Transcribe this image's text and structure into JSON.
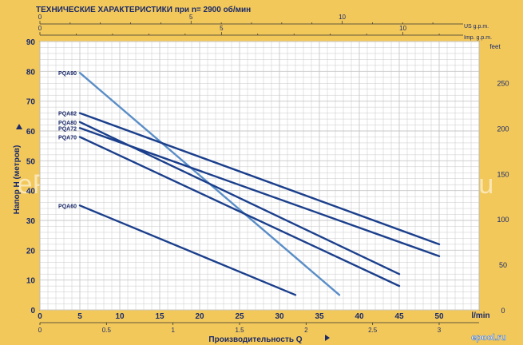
{
  "header": {
    "title": "ТЕХНИЧЕСКИЕ ХАРАКТЕРИСТИКИ при n= 2900 об/мин"
  },
  "watermark": {
    "text": "ePool.ru",
    "logo_text": "epool.ru"
  },
  "colors": {
    "background": "#f2c85a",
    "plot_bg": "#ffffff",
    "grid": "#c8c8c8",
    "curve_main": "#1b3f8c",
    "curve_pqa90": "#5a8ec7",
    "text": "#1a2a6a"
  },
  "chart_data": {
    "type": "line",
    "title": "ТЕХНИЧЕСКИЕ ХАРАКТЕРИСТИКИ при n= 2900 об/мин",
    "xlabel": "Производительность Q",
    "ylabel": "Напор Н (метров)",
    "x_unit": "l/min",
    "y_right_unit": "feet",
    "top_scale1_unit": "US g.p.m.",
    "top_scale2_unit": "Imp. g.p.m.",
    "xlim": [
      0,
      55
    ],
    "ylim": [
      0,
      90
    ],
    "grid": true,
    "x_ticks": [
      0,
      5,
      10,
      15,
      20,
      25,
      30,
      35,
      40,
      45,
      50
    ],
    "y_ticks": [
      0,
      10,
      20,
      30,
      40,
      50,
      60,
      70,
      80,
      90
    ],
    "bottom_secondary_ticks": [
      "0",
      "0.5",
      "1",
      "1.5",
      "2",
      "2.5",
      "3"
    ],
    "right_ticks": [
      "0",
      "50",
      "100",
      "150",
      "200",
      "250"
    ],
    "top_us_ticks": [
      "0",
      "5",
      "10"
    ],
    "top_imp_ticks": [
      "0",
      "5",
      "10"
    ],
    "series": [
      {
        "name": "PQA90",
        "points": [
          [
            5,
            79.5
          ],
          [
            37.5,
            5
          ]
        ]
      },
      {
        "name": "PQA82",
        "points": [
          [
            5,
            66
          ],
          [
            50,
            22
          ]
        ]
      },
      {
        "name": "PQA80",
        "points": [
          [
            5,
            63
          ],
          [
            45,
            12
          ]
        ]
      },
      {
        "name": "PQA72",
        "points": [
          [
            5,
            61
          ],
          [
            50,
            18
          ]
        ]
      },
      {
        "name": "PQA70",
        "points": [
          [
            5,
            58
          ],
          [
            45,
            8
          ]
        ]
      },
      {
        "name": "PQA60",
        "points": [
          [
            5,
            35
          ],
          [
            32,
            5
          ]
        ]
      }
    ]
  }
}
